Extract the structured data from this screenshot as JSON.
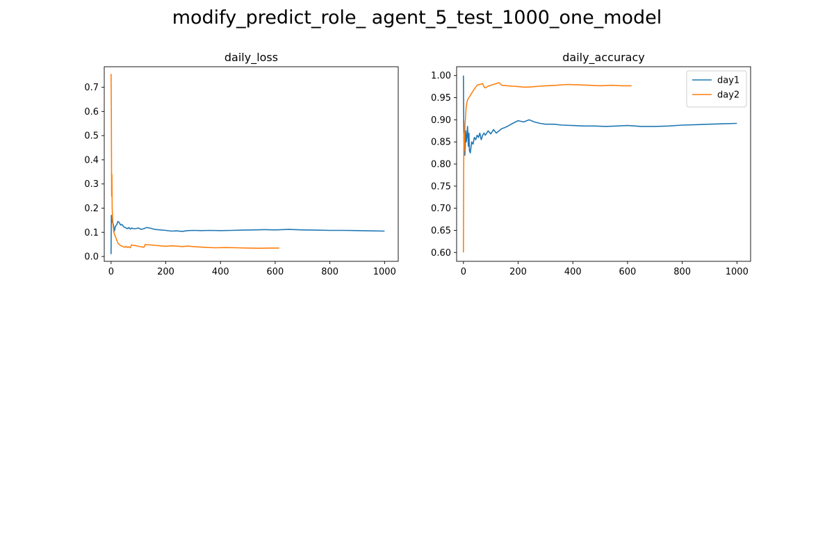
{
  "figure": {
    "suptitle": "modify_predict_role_ agent_5_test_1000_one_model"
  },
  "colors": {
    "day1": "#1f77b4",
    "day2": "#ff7f0e"
  },
  "chart_data": [
    {
      "type": "line",
      "title": "daily_loss",
      "xlabel": "",
      "ylabel": "",
      "xlim": [
        -25,
        1050
      ],
      "ylim": [
        -0.02,
        0.785
      ],
      "xticks": [
        0,
        200,
        400,
        600,
        800,
        1000
      ],
      "yticks": [
        0.0,
        0.1,
        0.2,
        0.3,
        0.4,
        0.5,
        0.6,
        0.7
      ],
      "grid": false,
      "legend": "none",
      "series": [
        {
          "name": "day1",
          "color": "#1f77b4",
          "x": [
            0,
            1,
            2,
            3,
            5,
            8,
            12,
            16,
            20,
            25,
            30,
            35,
            40,
            45,
            50,
            55,
            60,
            65,
            70,
            75,
            80,
            90,
            100,
            110,
            120,
            130,
            140,
            150,
            160,
            180,
            200,
            220,
            240,
            260,
            280,
            300,
            330,
            360,
            400,
            440,
            480,
            520,
            560,
            600,
            650,
            700,
            750,
            800,
            850,
            900,
            950,
            1000
          ],
          "values": [
            0.01,
            0.17,
            0.16,
            0.15,
            0.14,
            0.135,
            0.105,
            0.125,
            0.13,
            0.145,
            0.14,
            0.13,
            0.132,
            0.125,
            0.12,
            0.118,
            0.115,
            0.12,
            0.113,
            0.118,
            0.115,
            0.115,
            0.118,
            0.112,
            0.115,
            0.12,
            0.118,
            0.115,
            0.112,
            0.11,
            0.108,
            0.105,
            0.106,
            0.104,
            0.107,
            0.108,
            0.107,
            0.108,
            0.107,
            0.108,
            0.109,
            0.11,
            0.111,
            0.11,
            0.112,
            0.11,
            0.109,
            0.108,
            0.108,
            0.107,
            0.106,
            0.105
          ]
        },
        {
          "name": "day2",
          "color": "#ff7f0e",
          "x": [
            0,
            1,
            2,
            3,
            4,
            5,
            7,
            10,
            15,
            20,
            25,
            30,
            35,
            40,
            45,
            50,
            55,
            60,
            65,
            70,
            75,
            80,
            90,
            100,
            110,
            120,
            125,
            130,
            140,
            160,
            180,
            200,
            220,
            240,
            260,
            280,
            300,
            340,
            380,
            420,
            460,
            500,
            540,
            580,
            615
          ],
          "values": [
            0.755,
            0.6,
            0.25,
            0.34,
            0.2,
            0.17,
            0.13,
            0.1,
            0.085,
            0.07,
            0.055,
            0.05,
            0.045,
            0.043,
            0.04,
            0.038,
            0.042,
            0.037,
            0.04,
            0.036,
            0.048,
            0.046,
            0.045,
            0.042,
            0.04,
            0.038,
            0.05,
            0.049,
            0.048,
            0.046,
            0.044,
            0.042,
            0.044,
            0.043,
            0.041,
            0.043,
            0.041,
            0.038,
            0.036,
            0.037,
            0.036,
            0.035,
            0.034,
            0.035,
            0.035
          ]
        }
      ]
    },
    {
      "type": "line",
      "title": "daily_accuracy",
      "xlabel": "",
      "ylabel": "",
      "xlim": [
        -25,
        1050
      ],
      "ylim": [
        0.58,
        1.02
      ],
      "xticks": [
        0,
        200,
        400,
        600,
        800,
        1000
      ],
      "yticks": [
        0.6,
        0.65,
        0.7,
        0.75,
        0.8,
        0.85,
        0.9,
        0.95,
        1.0
      ],
      "grid": false,
      "legend": "top-right",
      "series": [
        {
          "name": "day1",
          "color": "#1f77b4",
          "x": [
            0,
            1,
            2,
            3,
            5,
            8,
            10,
            12,
            15,
            18,
            20,
            22,
            25,
            30,
            35,
            40,
            45,
            50,
            55,
            60,
            65,
            70,
            75,
            80,
            90,
            100,
            110,
            120,
            130,
            140,
            150,
            160,
            180,
            200,
            220,
            240,
            260,
            280,
            300,
            330,
            360,
            400,
            440,
            480,
            520,
            560,
            600,
            650,
            700,
            750,
            800,
            850,
            900,
            950,
            1000
          ],
          "values": [
            1.0,
            0.9,
            0.85,
            0.87,
            0.82,
            0.875,
            0.85,
            0.86,
            0.885,
            0.84,
            0.87,
            0.83,
            0.825,
            0.85,
            0.845,
            0.86,
            0.855,
            0.865,
            0.86,
            0.87,
            0.855,
            0.865,
            0.87,
            0.865,
            0.875,
            0.868,
            0.878,
            0.87,
            0.875,
            0.88,
            0.882,
            0.885,
            0.892,
            0.898,
            0.895,
            0.9,
            0.895,
            0.892,
            0.89,
            0.89,
            0.888,
            0.887,
            0.886,
            0.886,
            0.885,
            0.886,
            0.887,
            0.885,
            0.885,
            0.886,
            0.888,
            0.889,
            0.89,
            0.891,
            0.892
          ]
        },
        {
          "name": "day2",
          "color": "#ff7f0e",
          "x": [
            0,
            1,
            2,
            3,
            4,
            5,
            7,
            10,
            15,
            20,
            25,
            30,
            35,
            40,
            50,
            60,
            70,
            75,
            80,
            90,
            100,
            110,
            120,
            130,
            140,
            160,
            180,
            200,
            220,
            240,
            260,
            280,
            300,
            340,
            380,
            420,
            460,
            500,
            540,
            580,
            615
          ],
          "values": [
            0.6,
            0.8,
            0.87,
            0.83,
            0.85,
            0.88,
            0.9,
            0.93,
            0.945,
            0.95,
            0.955,
            0.96,
            0.965,
            0.97,
            0.978,
            0.98,
            0.982,
            0.975,
            0.972,
            0.976,
            0.978,
            0.98,
            0.982,
            0.984,
            0.978,
            0.977,
            0.976,
            0.975,
            0.974,
            0.974,
            0.975,
            0.976,
            0.977,
            0.978,
            0.98,
            0.979,
            0.978,
            0.977,
            0.978,
            0.977,
            0.977
          ]
        }
      ]
    }
  ]
}
